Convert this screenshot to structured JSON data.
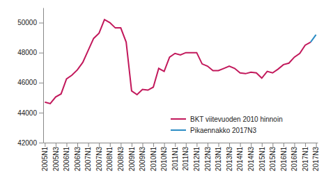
{
  "chart_data": {
    "type": "line",
    "categories": [
      "2005N1",
      null,
      "2005N3",
      null,
      "2006N1",
      null,
      "2006N3",
      null,
      "2007N1",
      null,
      "2007N3",
      null,
      "2008N1",
      null,
      "2008N3",
      null,
      "2009N1",
      null,
      "2009N3",
      null,
      "2010N1",
      null,
      "2010N3",
      null,
      "2011N1",
      null,
      "2011N3",
      null,
      "2012N1",
      null,
      "2012N3",
      null,
      "2013N1",
      null,
      "2013N3",
      null,
      "2014N1",
      null,
      "2014N3",
      null,
      "2015N1",
      null,
      "2015N3",
      null,
      "2016N1",
      null,
      "2016N3",
      null,
      "2017N1",
      null,
      "2017N3"
    ],
    "series": [
      {
        "name": "BKT viitevuoden 2010 hinnoin",
        "color": "#c2185b",
        "values": [
          44700,
          44600,
          45050,
          45250,
          46250,
          46500,
          46850,
          47350,
          48150,
          48950,
          49300,
          50200,
          50000,
          49650,
          49650,
          48700,
          45450,
          45200,
          45550,
          45500,
          45700,
          46950,
          46750,
          47700,
          47950,
          47850,
          48000,
          48000,
          48000,
          47250,
          47100,
          46800,
          46800,
          46950,
          47100,
          46950,
          46650,
          46600,
          46700,
          46650,
          46300,
          46750,
          46650,
          46900,
          47200,
          47300,
          47700,
          47950,
          48500,
          48700,
          null
        ]
      },
      {
        "name": "Pikaennakko 2017N3",
        "color": "#2b8cc4",
        "values": [
          null,
          null,
          null,
          null,
          null,
          null,
          null,
          null,
          null,
          null,
          null,
          null,
          null,
          null,
          null,
          null,
          null,
          null,
          null,
          null,
          null,
          null,
          null,
          null,
          null,
          null,
          null,
          null,
          null,
          null,
          null,
          null,
          null,
          null,
          null,
          null,
          null,
          null,
          null,
          null,
          null,
          null,
          null,
          null,
          null,
          null,
          null,
          null,
          null,
          48700,
          49200
        ]
      }
    ],
    "ylim": [
      42000,
      51000
    ],
    "yticks": [
      42000,
      44000,
      46000,
      48000,
      50000
    ],
    "grid": false,
    "legend": "lower right"
  }
}
